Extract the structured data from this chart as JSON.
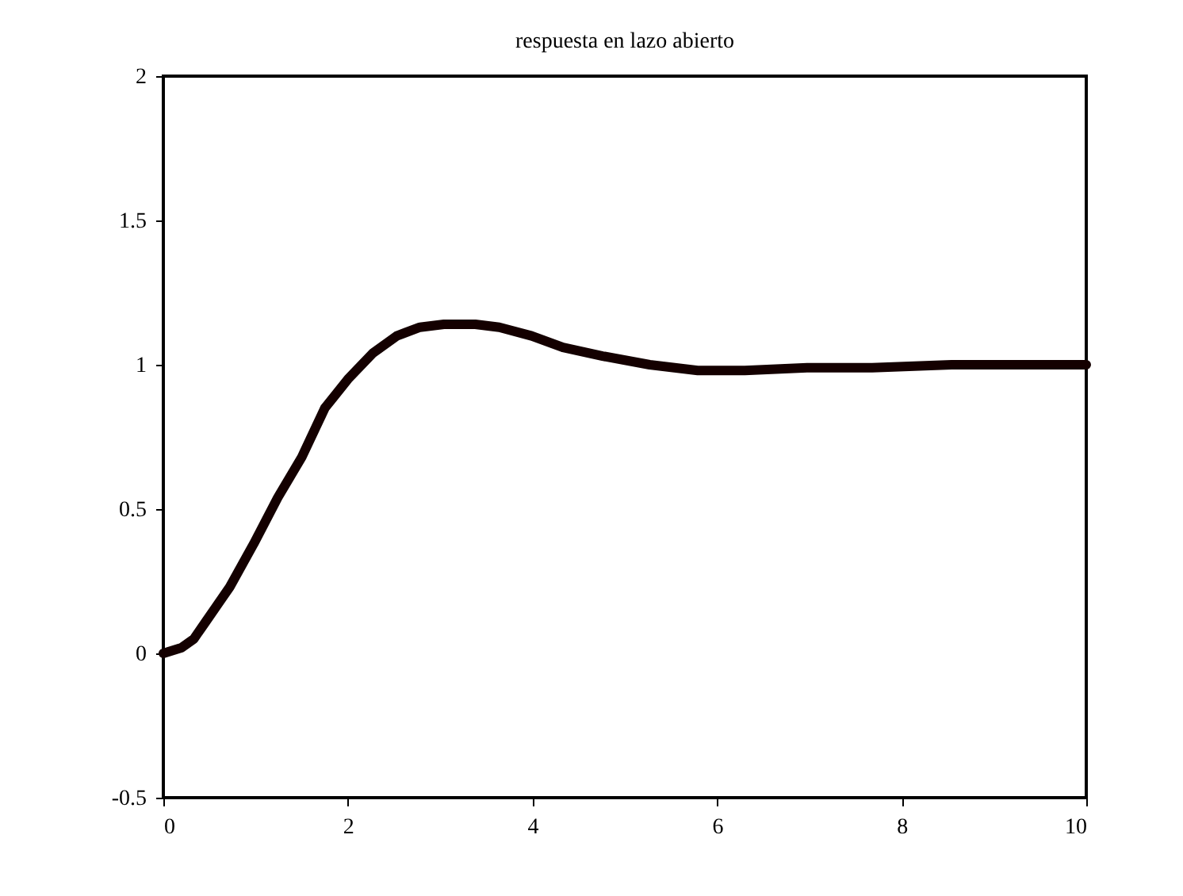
{
  "chart_data": {
    "type": "line",
    "title": "respuesta en lazo abierto",
    "x": [
      0,
      0.2,
      0.33,
      0.46,
      0.72,
      0.98,
      1.24,
      1.5,
      1.75,
      2.0,
      2.27,
      2.53,
      2.78,
      3.04,
      3.38,
      3.64,
      3.99,
      4.33,
      4.76,
      5.27,
      5.79,
      6.3,
      7.0,
      7.68,
      8.54,
      10
    ],
    "series": [
      {
        "color": "#140000",
        "values": [
          0,
          0.02,
          0.05,
          0.11,
          0.23,
          0.38,
          0.54,
          0.68,
          0.85,
          0.95,
          1.04,
          1.1,
          1.13,
          1.14,
          1.14,
          1.13,
          1.1,
          1.06,
          1.03,
          1.0,
          0.98,
          0.98,
          0.99,
          0.99,
          1.0,
          1.0
        ]
      }
    ],
    "xlim": [
      0,
      10
    ],
    "xticks": [
      0,
      2,
      4,
      6,
      8,
      10
    ],
    "ylim": [
      -0.5,
      2
    ],
    "yticks": [
      -0.5,
      0,
      0.5,
      1,
      1.5,
      2
    ],
    "grid": false,
    "marker": "none",
    "line_style": "solid"
  }
}
